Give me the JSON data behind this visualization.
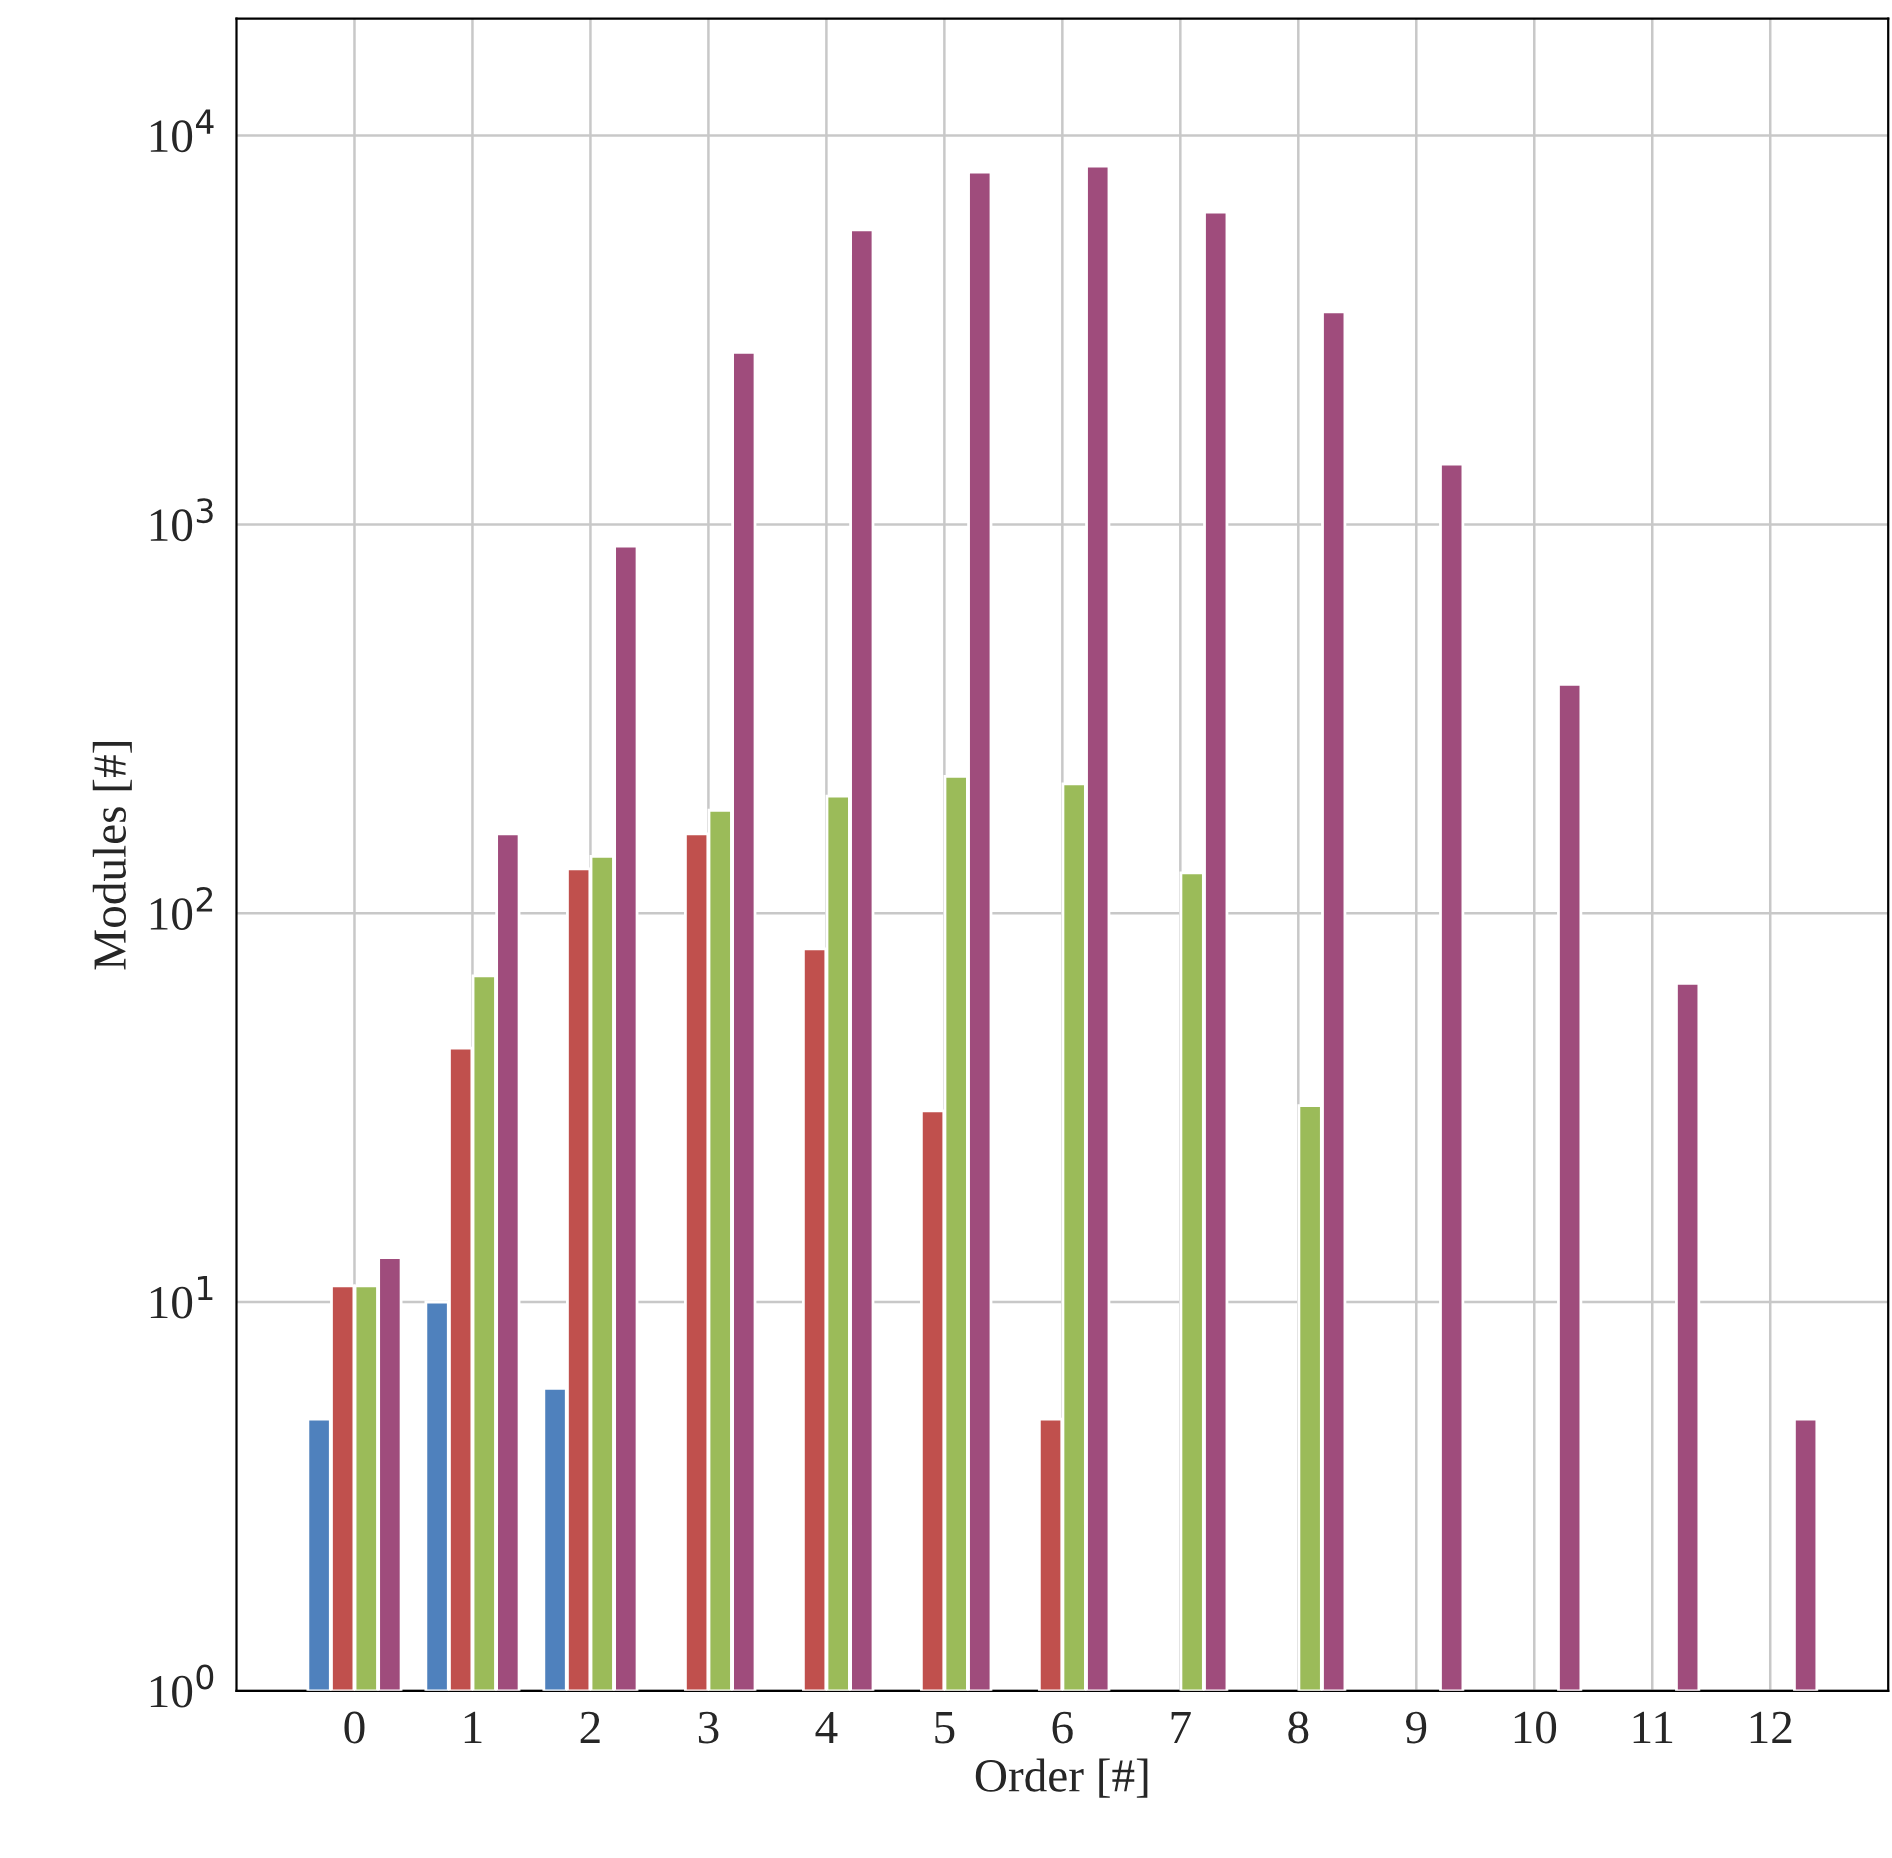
{
  "chart_data": {
    "type": "bar",
    "xlabel": "Order [#]",
    "ylabel": "Modules [#]",
    "categories": [
      "0",
      "1",
      "2",
      "3",
      "4",
      "5",
      "6",
      "7",
      "8",
      "9",
      "10",
      "11",
      "12"
    ],
    "series": [
      {
        "color": "#4f81bd",
        "values": [
          5,
          10,
          6,
          null,
          null,
          null,
          null,
          null,
          null,
          null,
          null,
          null,
          null
        ]
      },
      {
        "color": "#c0504d",
        "values": [
          11,
          45,
          130,
          160,
          81,
          31,
          5,
          null,
          null,
          null,
          null,
          null,
          null
        ]
      },
      {
        "color": "#9bbb59",
        "values": [
          11,
          69,
          140,
          184,
          200,
          225,
          215,
          127,
          32,
          null,
          null,
          null,
          null
        ]
      },
      {
        "color": "#9f4c7c",
        "values": [
          13,
          160,
          880,
          2770,
          5720,
          8060,
          8350,
          6360,
          3520,
          1430,
          388,
          66,
          5
        ]
      }
    ],
    "log": true,
    "ylim": [
      1,
      20000
    ],
    "yticks": [
      {
        "value": 1,
        "label": "10$^{0}$"
      },
      {
        "value": 10,
        "label": "10$^{1}$"
      },
      {
        "value": 100,
        "label": "10$^{2}$"
      },
      {
        "value": 1000,
        "label": "10$^{3}$"
      },
      {
        "value": 10000,
        "label": "10$^{4}$"
      }
    ],
    "grid": true
  }
}
